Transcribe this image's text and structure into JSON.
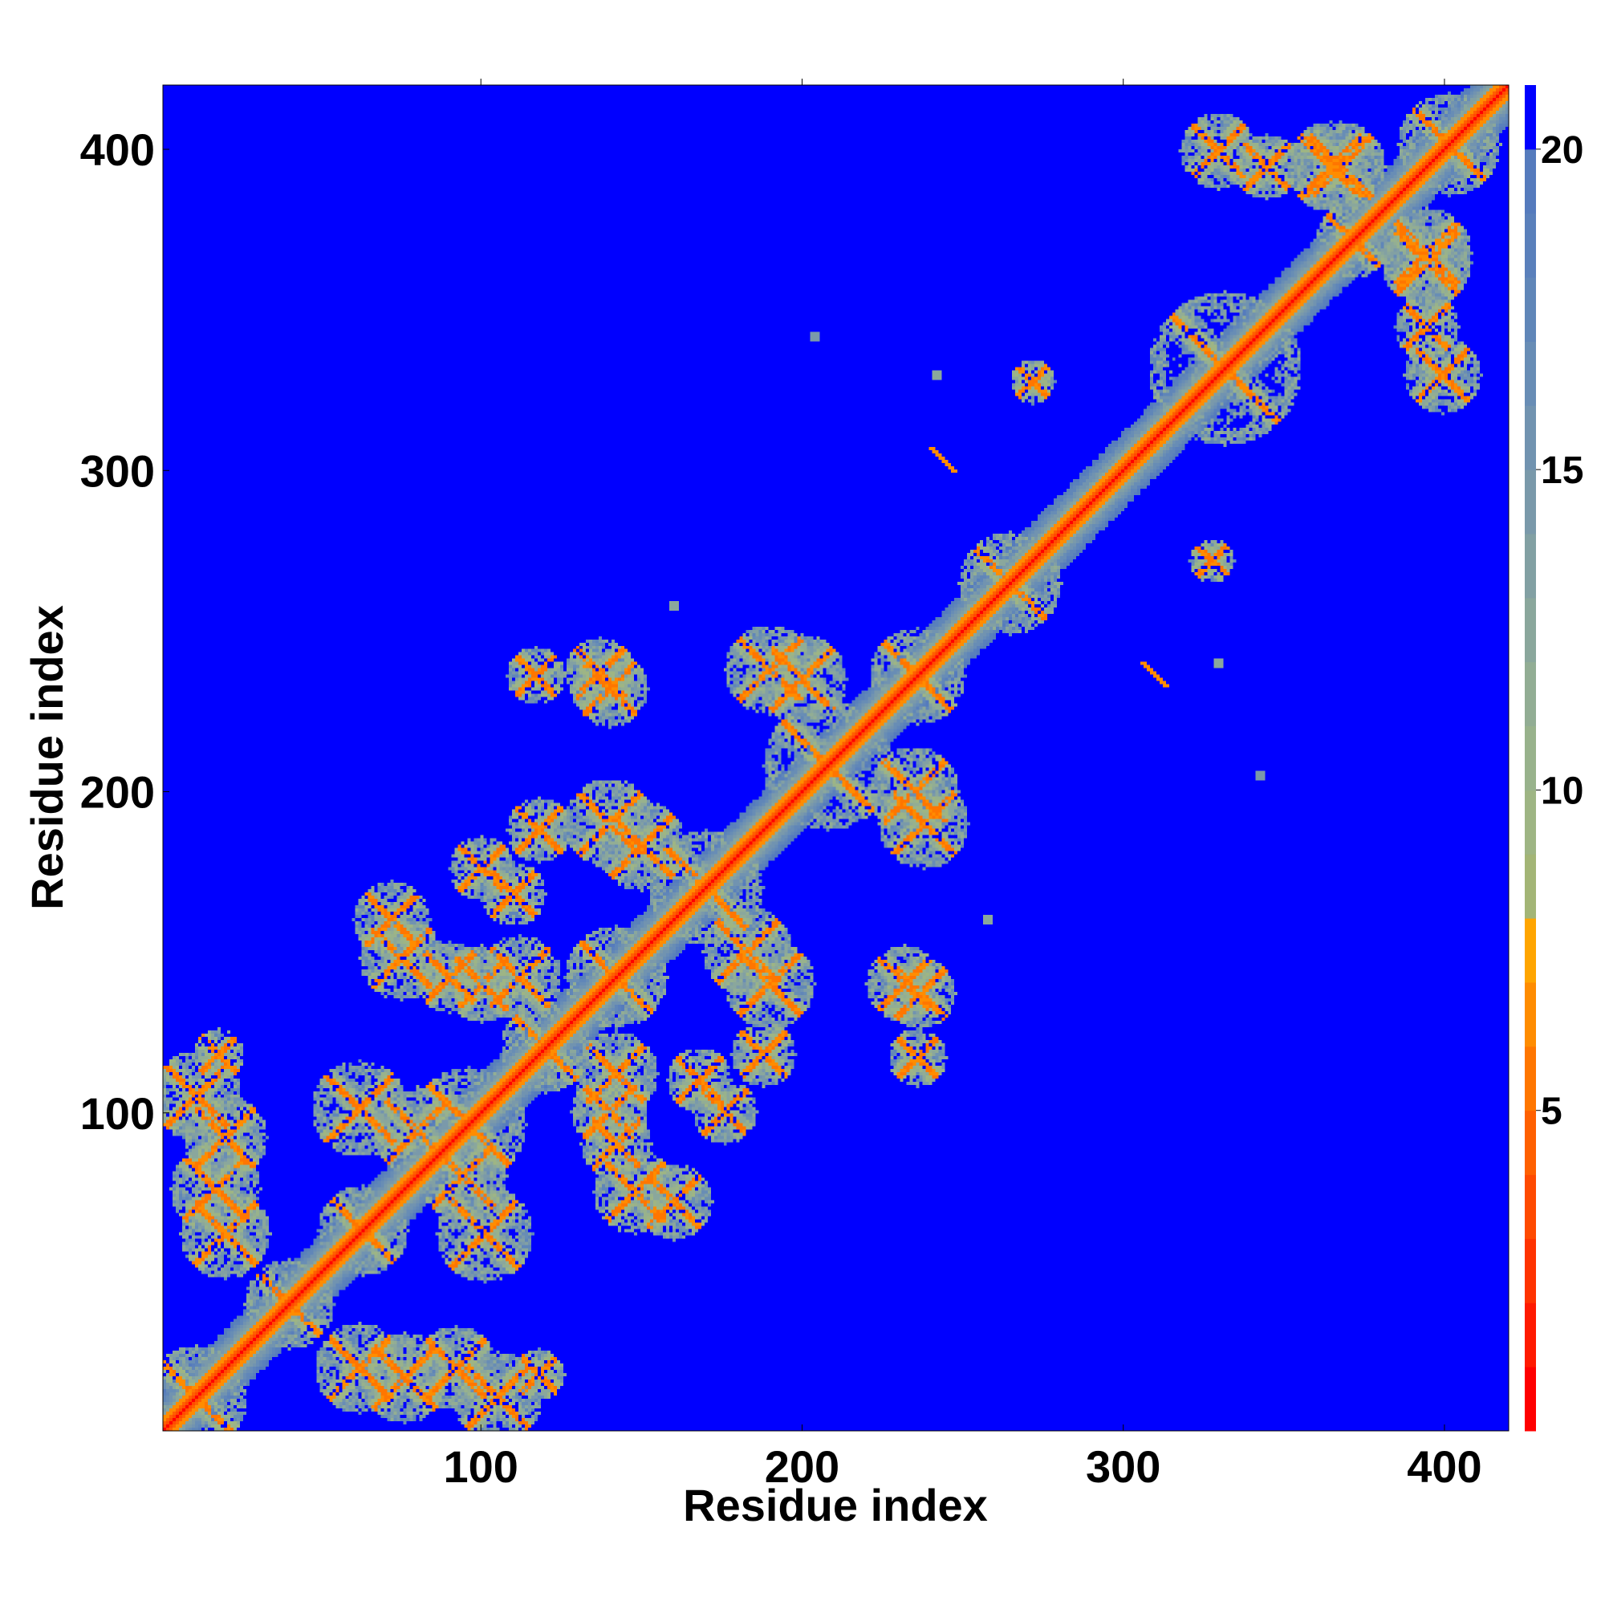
{
  "chart_data": {
    "type": "heatmap",
    "title": "",
    "xlabel": "Residue index",
    "ylabel": "Residue index",
    "xlim": [
      1,
      420
    ],
    "ylim": [
      1,
      420
    ],
    "x_ticks": [
      100,
      200,
      300,
      400
    ],
    "y_ticks": [
      100,
      200,
      300,
      400
    ],
    "colorbar": {
      "ticks": [
        5,
        10,
        15,
        20
      ],
      "range": [
        0,
        21
      ],
      "saturates_above": 20,
      "bands": [
        {
          "from": 0,
          "to": 1,
          "color": "#ff0000"
        },
        {
          "from": 1,
          "to": 2,
          "color": "#ff1a00"
        },
        {
          "from": 2,
          "to": 3,
          "color": "#ff3300"
        },
        {
          "from": 3,
          "to": 4,
          "color": "#ff4a00"
        },
        {
          "from": 4,
          "to": 5,
          "color": "#ff6000"
        },
        {
          "from": 5,
          "to": 6,
          "color": "#ff7600"
        },
        {
          "from": 6,
          "to": 7,
          "color": "#ff8c00"
        },
        {
          "from": 7,
          "to": 8,
          "color": "#ffa500"
        },
        {
          "from": 8,
          "to": 9,
          "color": "#a3b576"
        },
        {
          "from": 9,
          "to": 10,
          "color": "#9eb584"
        },
        {
          "from": 10,
          "to": 11,
          "color": "#98b28c"
        },
        {
          "from": 11,
          "to": 12,
          "color": "#92ad94"
        },
        {
          "from": 12,
          "to": 13,
          "color": "#8aa79c"
        },
        {
          "from": 13,
          "to": 14,
          "color": "#82a0a3"
        },
        {
          "from": 14,
          "to": 15,
          "color": "#7a99aa"
        },
        {
          "from": 15,
          "to": 16,
          "color": "#7193b0"
        },
        {
          "from": 16,
          "to": 17,
          "color": "#688db5"
        },
        {
          "from": 17,
          "to": 18,
          "color": "#6086b8"
        },
        {
          "from": 18,
          "to": 19,
          "color": "#5a80bb"
        },
        {
          "from": 19,
          "to": 20,
          "color": "#557bbd"
        },
        {
          "from": 20,
          "to": 21,
          "color": "#0000ff"
        }
      ]
    },
    "background_value": 21,
    "diagonal": {
      "value": 0.5,
      "neighbor_value": 6,
      "band_value": 11
    },
    "helix_blocks": [
      {
        "x": 11,
        "y": 11,
        "r": 14
      },
      {
        "x": 40,
        "y": 40,
        "r": 12
      },
      {
        "x": 63,
        "y": 63,
        "r": 12
      },
      {
        "x": 96,
        "y": 96,
        "r": 16
      },
      {
        "x": 120,
        "y": 120,
        "r": 12
      },
      {
        "x": 142,
        "y": 142,
        "r": 14
      },
      {
        "x": 170,
        "y": 170,
        "r": 16
      },
      {
        "x": 208,
        "y": 208,
        "r": 18
      },
      {
        "x": 236,
        "y": 236,
        "r": 13
      },
      {
        "x": 265,
        "y": 265,
        "r": 14
      },
      {
        "x": 332,
        "y": 332,
        "r": 22
      },
      {
        "x": 372,
        "y": 372,
        "r": 10
      },
      {
        "x": 402,
        "y": 402,
        "r": 14
      }
    ],
    "contact_crosses": [
      {
        "x": 17,
        "y": 76,
        "r": 12
      },
      {
        "x": 11,
        "y": 105,
        "r": 12
      },
      {
        "x": 62,
        "y": 101,
        "r": 13
      },
      {
        "x": 94,
        "y": 80,
        "r": 12
      },
      {
        "x": 62,
        "y": 20,
        "r": 12
      },
      {
        "x": 92,
        "y": 20,
        "r": 11
      },
      {
        "x": 118,
        "y": 18,
        "r": 6
      },
      {
        "x": 72,
        "y": 160,
        "r": 10
      },
      {
        "x": 90,
        "y": 142,
        "r": 9
      },
      {
        "x": 110,
        "y": 168,
        "r": 8
      },
      {
        "x": 118,
        "y": 188,
        "r": 8
      },
      {
        "x": 112,
        "y": 142,
        "r": 11
      },
      {
        "x": 148,
        "y": 75,
        "r": 11
      },
      {
        "x": 140,
        "y": 100,
        "r": 10
      },
      {
        "x": 190,
        "y": 140,
        "r": 12
      },
      {
        "x": 176,
        "y": 100,
        "r": 8
      },
      {
        "x": 150,
        "y": 183,
        "r": 12
      },
      {
        "x": 140,
        "y": 232,
        "r": 10
      },
      {
        "x": 200,
        "y": 235,
        "r": 12
      },
      {
        "x": 238,
        "y": 190,
        "r": 12
      },
      {
        "x": 237,
        "y": 137,
        "r": 9
      },
      {
        "x": 236,
        "y": 117,
        "r": 7
      },
      {
        "x": 368,
        "y": 395,
        "r": 12
      },
      {
        "x": 395,
        "y": 365,
        "r": 12
      },
      {
        "x": 400,
        "y": 330,
        "r": 10
      },
      {
        "x": 345,
        "y": 395,
        "r": 8
      },
      {
        "x": 328,
        "y": 272,
        "r": 5
      }
    ],
    "contact_points": [
      {
        "x": 240,
        "y": 307,
        "value": 6,
        "len": 8
      },
      {
        "x": 242,
        "y": 330,
        "value": 12,
        "len": 0
      },
      {
        "x": 306,
        "y": 240,
        "value": 6,
        "len": 8
      },
      {
        "x": 330,
        "y": 240,
        "value": 12,
        "len": 0
      },
      {
        "x": 204,
        "y": 342,
        "value": 14,
        "len": 0
      },
      {
        "x": 343,
        "y": 205,
        "value": 14,
        "len": 0
      },
      {
        "x": 258,
        "y": 160,
        "value": 12,
        "len": 0
      },
      {
        "x": 160,
        "y": 258,
        "value": 12,
        "len": 0
      }
    ]
  }
}
